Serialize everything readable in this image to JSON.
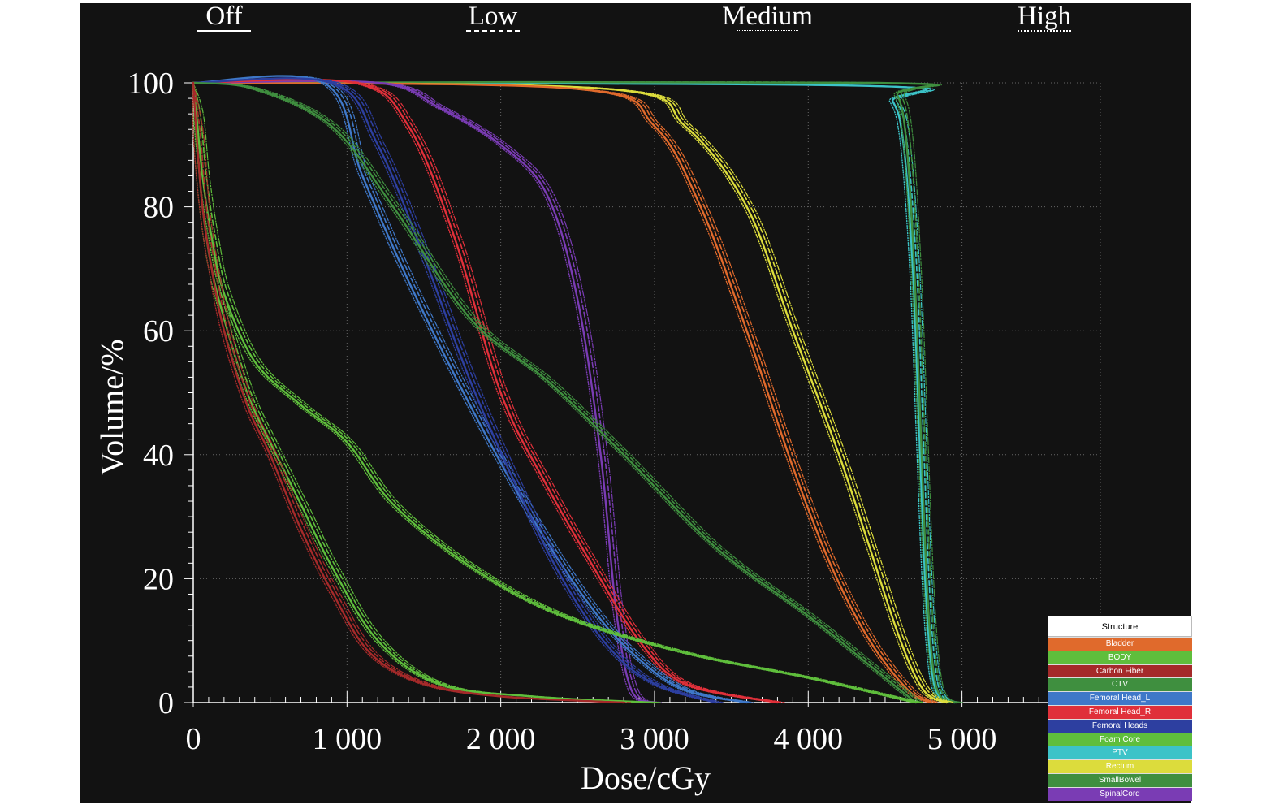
{
  "legend": {
    "header": "Structure",
    "items": [
      {
        "label": "Bladder",
        "color": "#e06a2c"
      },
      {
        "label": "BODY",
        "color": "#5fbe3c"
      },
      {
        "label": "Carbon Fiber",
        "color": "#a52a2a"
      },
      {
        "label": "CTV",
        "color": "#3f8f3f"
      },
      {
        "label": "Femoral Head_L",
        "color": "#3f78c8"
      },
      {
        "label": "Femoral Head_R",
        "color": "#e0303a"
      },
      {
        "label": "Femoral Heads",
        "color": "#2d3fa0"
      },
      {
        "label": "Foam Core",
        "color": "#5fbe3c"
      },
      {
        "label": "PTV",
        "color": "#3cc3c8"
      },
      {
        "label": "Rectum",
        "color": "#dcdc3c"
      },
      {
        "label": "SmallBowel",
        "color": "#3f8f3f"
      },
      {
        "label": "SpinalCord",
        "color": "#7a3cb4"
      }
    ]
  },
  "levels": [
    {
      "label": "Off",
      "style": "solid"
    },
    {
      "label": "Low",
      "style": "dashed"
    },
    {
      "label": "Medium",
      "style": "dotted"
    },
    {
      "label": "High",
      "style": "dashdot"
    }
  ],
  "chart_data": {
    "type": "line",
    "xlabel": "Dose/cGy",
    "ylabel": "Volume/%",
    "xlim": [
      0,
      5900
    ],
    "ylim": [
      0,
      100
    ],
    "xticks": [
      0,
      1000,
      2000,
      3000,
      4000,
      5000
    ],
    "xtick_labels": [
      "0",
      "1 000",
      "2 000",
      "3 000",
      "4 000",
      "5 000"
    ],
    "yticks": [
      0,
      20,
      40,
      60,
      80,
      100
    ],
    "ytick_labels": [
      "0",
      "20",
      "40",
      "60",
      "80",
      "100"
    ],
    "grid": true,
    "legend_position": "bottom-right",
    "series": [
      {
        "name": "PTV",
        "color": "#3cc3c8",
        "x": [
          0,
          4400,
          4550,
          4620,
          4680,
          4720,
          4760,
          4800,
          4850,
          4950
        ],
        "y": [
          100,
          99.5,
          97,
          90,
          70,
          45,
          20,
          6,
          1,
          0
        ]
      },
      {
        "name": "CTV",
        "color": "#3f8f3f",
        "x": [
          0,
          4450,
          4580,
          4640,
          4690,
          4730,
          4770,
          4810,
          4860,
          4960
        ],
        "y": [
          100,
          100,
          98,
          90,
          70,
          45,
          20,
          6,
          1,
          0
        ]
      },
      {
        "name": "Rectum",
        "color": "#dcdc3c",
        "x": [
          0,
          2700,
          3200,
          3600,
          3900,
          4200,
          4400,
          4600,
          4750,
          4900
        ],
        "y": [
          100,
          99,
          93,
          80,
          60,
          40,
          25,
          10,
          2,
          0
        ]
      },
      {
        "name": "Bladder",
        "color": "#e06a2c",
        "x": [
          0,
          2500,
          3000,
          3300,
          3600,
          3900,
          4150,
          4400,
          4650,
          4800
        ],
        "y": [
          100,
          99,
          93,
          80,
          60,
          38,
          22,
          10,
          2,
          0
        ]
      },
      {
        "name": "SpinalCord",
        "color": "#7a3cb4",
        "x": [
          0,
          1200,
          1600,
          2000,
          2300,
          2500,
          2650,
          2750,
          2850,
          3000
        ],
        "y": [
          100,
          100,
          96,
          90,
          82,
          65,
          40,
          15,
          2,
          0
        ]
      },
      {
        "name": "Femoral Head_R",
        "color": "#e0303a",
        "x": [
          0,
          1050,
          1400,
          1700,
          2000,
          2300,
          2600,
          2900,
          3200,
          3800
        ],
        "y": [
          100,
          100,
          93,
          75,
          50,
          35,
          22,
          10,
          3,
          0
        ]
      },
      {
        "name": "Femoral Head_L",
        "color": "#3f78c8",
        "x": [
          0,
          850,
          1100,
          1400,
          1800,
          2200,
          2600,
          2900,
          3200,
          3600
        ],
        "y": [
          100,
          100,
          85,
          68,
          48,
          30,
          15,
          7,
          2,
          0
        ]
      },
      {
        "name": "Femoral Heads",
        "color": "#2d3fa0",
        "x": [
          0,
          900,
          1200,
          1500,
          1800,
          2100,
          2400,
          2700,
          3000,
          3400
        ],
        "y": [
          100,
          100,
          90,
          72,
          52,
          35,
          20,
          9,
          3,
          0
        ]
      },
      {
        "name": "SmallBowel",
        "color": "#3f8f3f",
        "x": [
          0,
          400,
          900,
          1300,
          1800,
          2300,
          2800,
          3400,
          4000,
          4400,
          4700
        ],
        "y": [
          100,
          99,
          93,
          80,
          62,
          52,
          40,
          25,
          14,
          6,
          0
        ]
      },
      {
        "name": "BODY",
        "color": "#5fbe3c",
        "x": [
          0,
          20,
          60,
          120,
          200,
          400,
          700,
          1000,
          1300,
          1800,
          2400,
          3200,
          4000,
          4700
        ],
        "y": [
          100,
          95,
          85,
          75,
          66,
          55,
          48,
          42,
          32,
          22,
          14,
          8,
          4,
          0
        ]
      },
      {
        "name": "Foam Core",
        "color": "#5fbe3c",
        "x": [
          0,
          20,
          60,
          120,
          200,
          350,
          500,
          700,
          900,
          1200,
          1600,
          2200,
          3000
        ],
        "y": [
          100,
          92,
          80,
          70,
          62,
          50,
          42,
          32,
          22,
          10,
          3,
          1,
          0
        ]
      },
      {
        "name": "Carbon Fiber",
        "color": "#a52a2a",
        "x": [
          0,
          20,
          60,
          120,
          200,
          350,
          500,
          700,
          900,
          1150,
          1500,
          2000,
          2800
        ],
        "y": [
          100,
          92,
          80,
          70,
          60,
          48,
          40,
          28,
          18,
          8,
          3,
          1,
          0
        ]
      }
    ]
  }
}
